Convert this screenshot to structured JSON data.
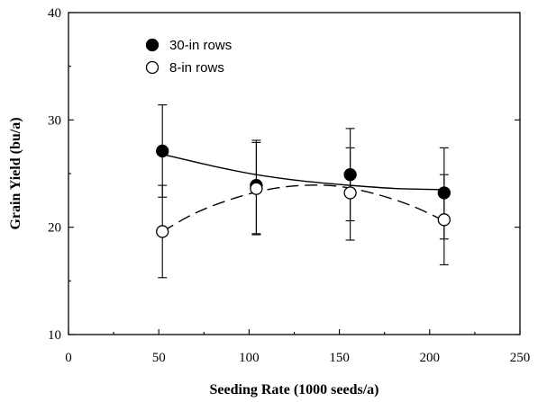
{
  "chart_data": {
    "type": "scatter",
    "title": "",
    "xlabel": "Seeding Rate (1000 seeds/a)",
    "ylabel": "Grain Yield (bu/a)",
    "xlim": [
      0,
      250
    ],
    "ylim": [
      10,
      40
    ],
    "x_ticks": [
      0,
      50,
      100,
      150,
      200,
      250
    ],
    "y_ticks": [
      10,
      20,
      30,
      40
    ],
    "x_tick_labels": [
      "0",
      "50",
      "100",
      "150",
      "200",
      "250"
    ],
    "y_tick_labels": [
      "10",
      "20",
      "30",
      "40"
    ],
    "grid": false,
    "legend_position": "top-left",
    "series": [
      {
        "name": "30-in rows",
        "marker": "filled-circle",
        "fit_line": "solid",
        "x": [
          52,
          104,
          156,
          208
        ],
        "y": [
          27.1,
          23.9,
          24.9,
          23.2
        ],
        "error_upper": [
          31.4,
          28.1,
          29.2,
          27.4
        ],
        "error_lower": [
          22.8,
          19.4,
          20.6,
          18.9
        ],
        "fit": [
          [
            52,
            26.8
          ],
          [
            80,
            25.7
          ],
          [
            104,
            24.9
          ],
          [
            130,
            24.3
          ],
          [
            156,
            23.9
          ],
          [
            182,
            23.6
          ],
          [
            208,
            23.5
          ]
        ]
      },
      {
        "name": "8-in rows",
        "marker": "open-circle",
        "fit_line": "dashed",
        "x": [
          52,
          104,
          156,
          208
        ],
        "y": [
          19.6,
          23.6,
          23.2,
          20.7
        ],
        "error_upper": [
          23.9,
          27.9,
          27.4,
          24.9
        ],
        "error_lower": [
          15.3,
          19.3,
          18.8,
          16.5
        ],
        "fit": [
          [
            52,
            19.6
          ],
          [
            70,
            21.3
          ],
          [
            90,
            22.6
          ],
          [
            110,
            23.5
          ],
          [
            130,
            23.9
          ],
          [
            150,
            23.8
          ],
          [
            170,
            23.1
          ],
          [
            190,
            22.0
          ],
          [
            208,
            20.6
          ]
        ]
      }
    ]
  }
}
